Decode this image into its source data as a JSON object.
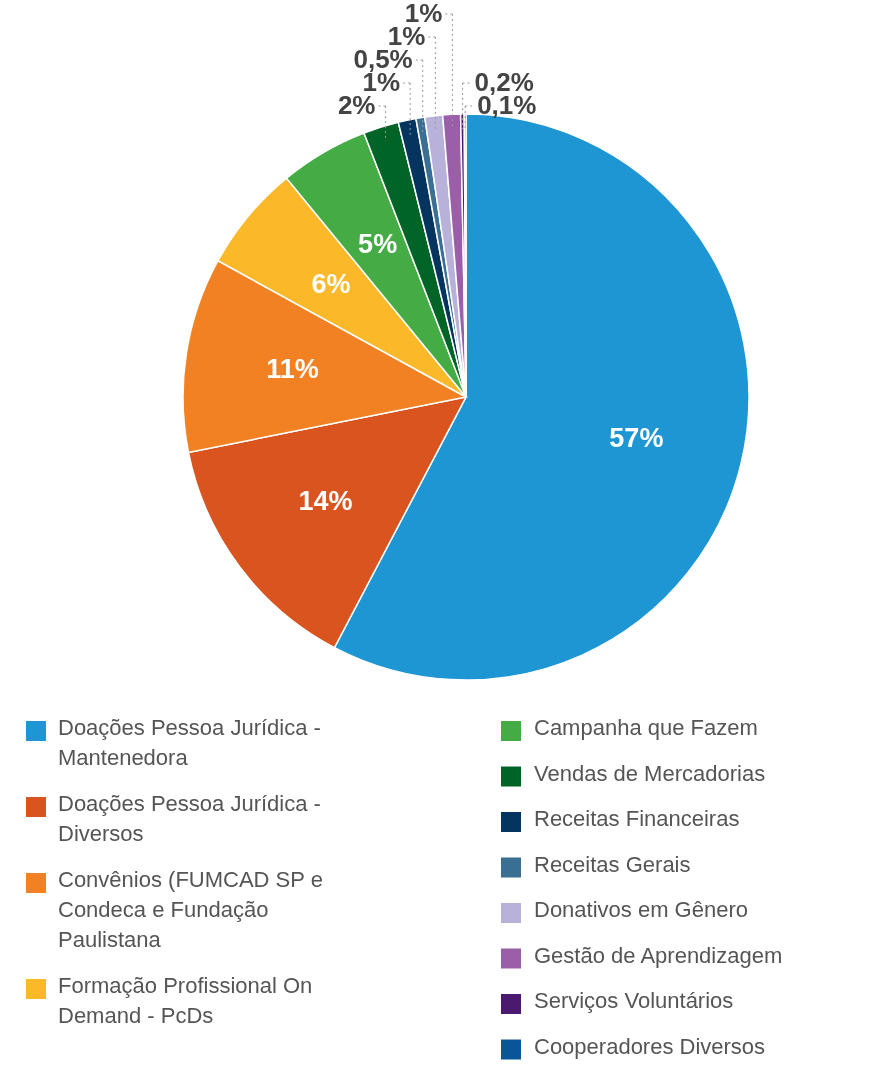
{
  "chart_data": {
    "type": "pie",
    "categories": [
      "Doações Pessoa Jurídica - Mantenedora",
      "Doações Pessoa Jurídica - Diversos",
      "Convênios (FUMCAD SP e Condeca e Fundação Paulistana",
      "Formação Profissional On Demand - PcDs",
      "Campanha que Fazem",
      "Vendas de Mercadorias",
      "Receitas Financeiras",
      "Receitas Gerais",
      "Donativos em Gênero",
      "Gestão de Aprendizagem",
      "Serviços Voluntários",
      "Cooperadores Diversos"
    ],
    "values": [
      57,
      14,
      11,
      6,
      5,
      2,
      1,
      0.5,
      1,
      1,
      0.2,
      0.1
    ],
    "value_labels": [
      "57%",
      "14%",
      "11%",
      "6%",
      "5%",
      "2%",
      "1%",
      "0,5%",
      "1%",
      "1%",
      "0,2%",
      "0,1%"
    ],
    "colors": [
      "#1e96d4",
      "#d9541e",
      "#f28124",
      "#fbb829",
      "#45ab45",
      "#006426",
      "#05345f",
      "#3a6f93",
      "#b8b1d9",
      "#9b5ea9",
      "#4b1a6f",
      "#0a5598"
    ],
    "legend": "bottom"
  }
}
